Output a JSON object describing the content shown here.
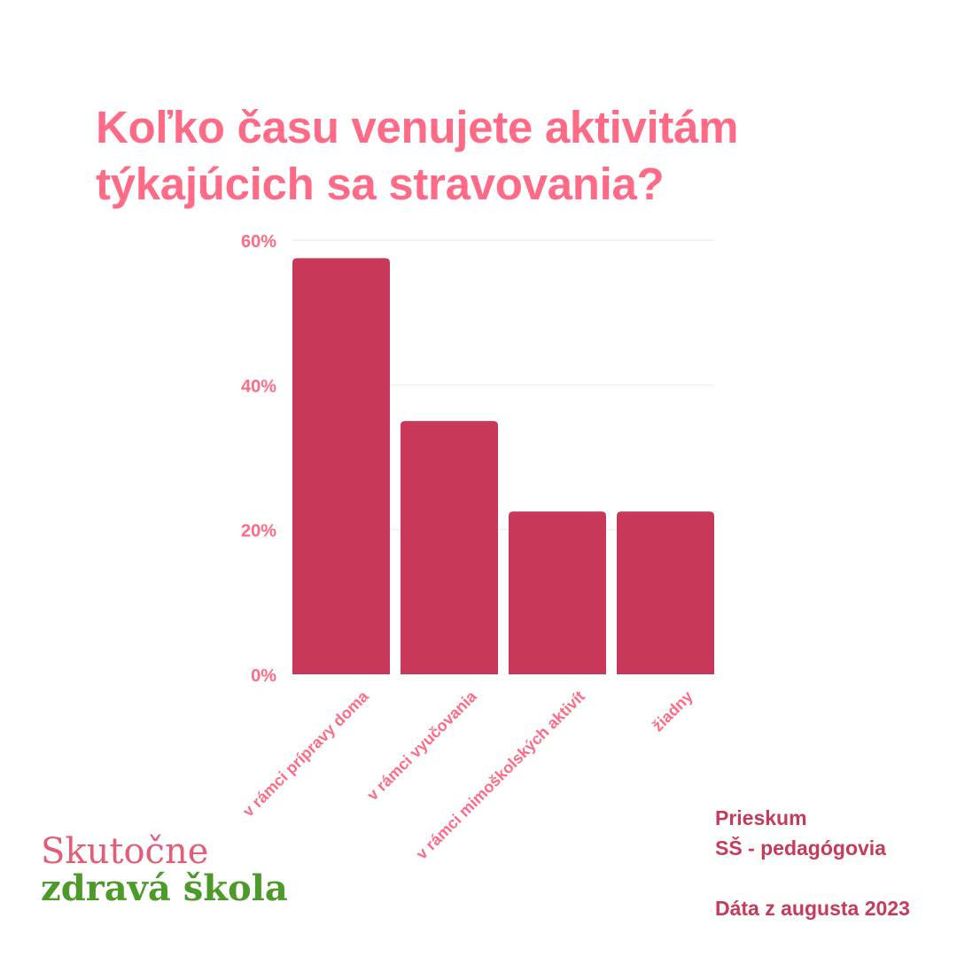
{
  "header": {
    "title_line1": "Koľko času venujete aktivitám",
    "title_line2": "týkajúcich sa stravovania?"
  },
  "chart_data": {
    "type": "bar",
    "categories": [
      "v rámci prípravy doma",
      "v rámci vyučovania",
      "v rámci mimoškolských aktivít",
      "žiadny"
    ],
    "values": [
      57.5,
      35,
      22.5,
      22.5
    ],
    "yticks": [
      "0%",
      "20%",
      "40%",
      "60%"
    ],
    "ylim": [
      0,
      60
    ],
    "grid": true,
    "colors": {
      "bar": "#c73859",
      "tick": "#ff6b86",
      "grid": "#f3e6e9"
    }
  },
  "logo": {
    "line1": "Skutočne",
    "line2": "zdravá škola"
  },
  "info": {
    "survey": "Prieskum",
    "group": "SŠ - pedagógovia",
    "date": "Dáta z augusta 2023"
  }
}
